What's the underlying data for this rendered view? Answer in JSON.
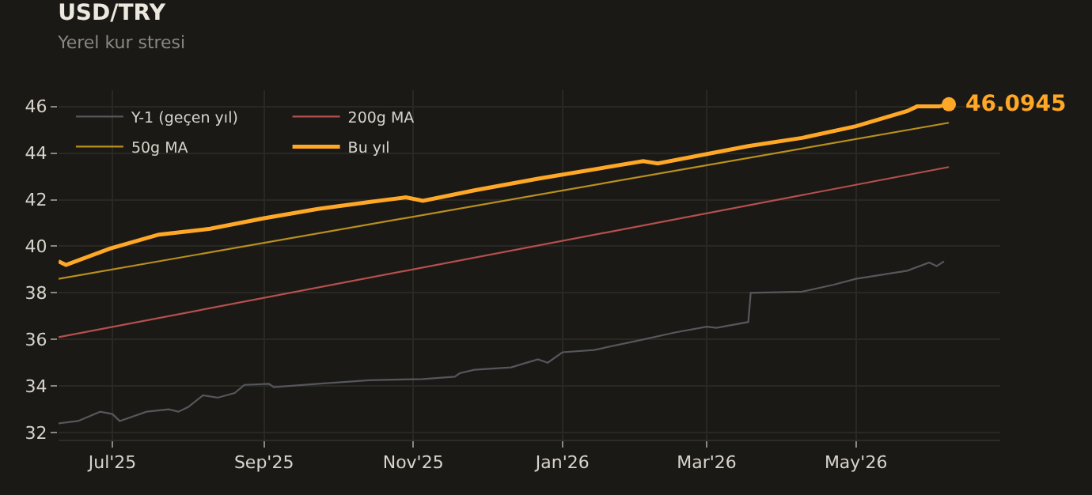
{
  "chart_data": {
    "type": "line",
    "title": "USD/TRY",
    "subtitle": "Yerel kur stresi",
    "series": [
      {
        "name": "Y-1 (geçen yıl)",
        "color": "#55575c",
        "x": [
          "2025-06-09",
          "2025-06-17",
          "2025-06-26",
          "2025-07-01",
          "2025-07-04",
          "2025-07-15",
          "2025-07-24",
          "2025-07-28",
          "2025-08-01",
          "2025-08-07",
          "2025-08-13",
          "2025-08-20",
          "2025-08-24",
          "2025-09-03",
          "2025-09-05",
          "2025-09-23",
          "2025-10-14",
          "2025-11-05",
          "2025-11-18",
          "2025-11-20",
          "2025-11-26",
          "2025-12-11",
          "2025-12-22",
          "2025-12-26",
          "2026-01-01",
          "2026-01-14",
          "2026-02-03",
          "2026-02-16",
          "2026-03-01",
          "2026-03-05",
          "2026-03-18",
          "2026-03-19",
          "2026-04-09",
          "2026-04-22",
          "2026-05-01",
          "2026-05-22",
          "2026-05-31",
          "2026-06-03",
          "2026-06-06"
        ],
        "values": [
          32.4,
          32.5,
          32.9,
          32.8,
          32.5,
          32.9,
          33.0,
          32.9,
          33.1,
          33.6,
          33.5,
          33.7,
          34.05,
          34.1,
          33.95,
          34.1,
          34.25,
          34.3,
          34.4,
          34.55,
          34.7,
          34.8,
          35.15,
          35.0,
          35.45,
          35.55,
          36.0,
          36.3,
          36.55,
          36.5,
          36.75,
          38.0,
          38.05,
          38.35,
          38.6,
          38.95,
          39.3,
          39.15,
          39.35
        ]
      },
      {
        "name": "50g MA",
        "color": "#b8901e",
        "x": [
          "2025-06-09",
          "2026-06-08"
        ],
        "values": [
          38.6,
          45.3
        ]
      },
      {
        "name": "200g MA",
        "color": "#b5504f",
        "x": [
          "2025-06-09",
          "2026-06-08"
        ],
        "values": [
          36.1,
          43.4
        ]
      },
      {
        "name": "Bu yıl",
        "color": "#ffa726",
        "x": [
          "2025-06-09",
          "2025-06-12",
          "2025-06-30",
          "2025-07-20",
          "2025-08-10",
          "2025-09-01",
          "2025-09-23",
          "2025-10-14",
          "2025-10-29",
          "2025-11-05",
          "2025-11-26",
          "2025-12-22",
          "2026-02-03",
          "2026-02-09",
          "2026-03-18",
          "2026-04-09",
          "2026-05-01",
          "2026-05-22",
          "2026-05-26",
          "2026-06-04",
          "2026-06-08"
        ],
        "values": [
          39.35,
          39.2,
          39.9,
          40.5,
          40.75,
          41.2,
          41.6,
          41.9,
          42.1,
          41.95,
          42.4,
          42.9,
          43.65,
          43.55,
          44.3,
          44.65,
          45.15,
          45.8,
          46.0,
          46.0,
          46.0945
        ]
      }
    ],
    "annotations": [
      {
        "text": "46.0945",
        "x": "2026-06-08",
        "y": 46.0945
      }
    ],
    "xlim": [
      "2025-06-09",
      "2026-06-29"
    ],
    "xticks": [
      {
        "value": "2025-07-01",
        "label": "Jul'25"
      },
      {
        "value": "2025-09-01",
        "label": "Sep'25"
      },
      {
        "value": "2025-11-01",
        "label": "Nov'25"
      },
      {
        "value": "2026-01-01",
        "label": "Jan'26"
      },
      {
        "value": "2026-03-01",
        "label": "Mar'26"
      },
      {
        "value": "2026-05-01",
        "label": "May'26"
      }
    ],
    "ylim": [
      31.7,
      46.7
    ],
    "yticks": [
      32,
      34,
      36,
      38,
      40,
      42,
      44,
      46
    ],
    "grid": true,
    "legend": "top left",
    "line_style": "solid",
    "marker": "none"
  }
}
